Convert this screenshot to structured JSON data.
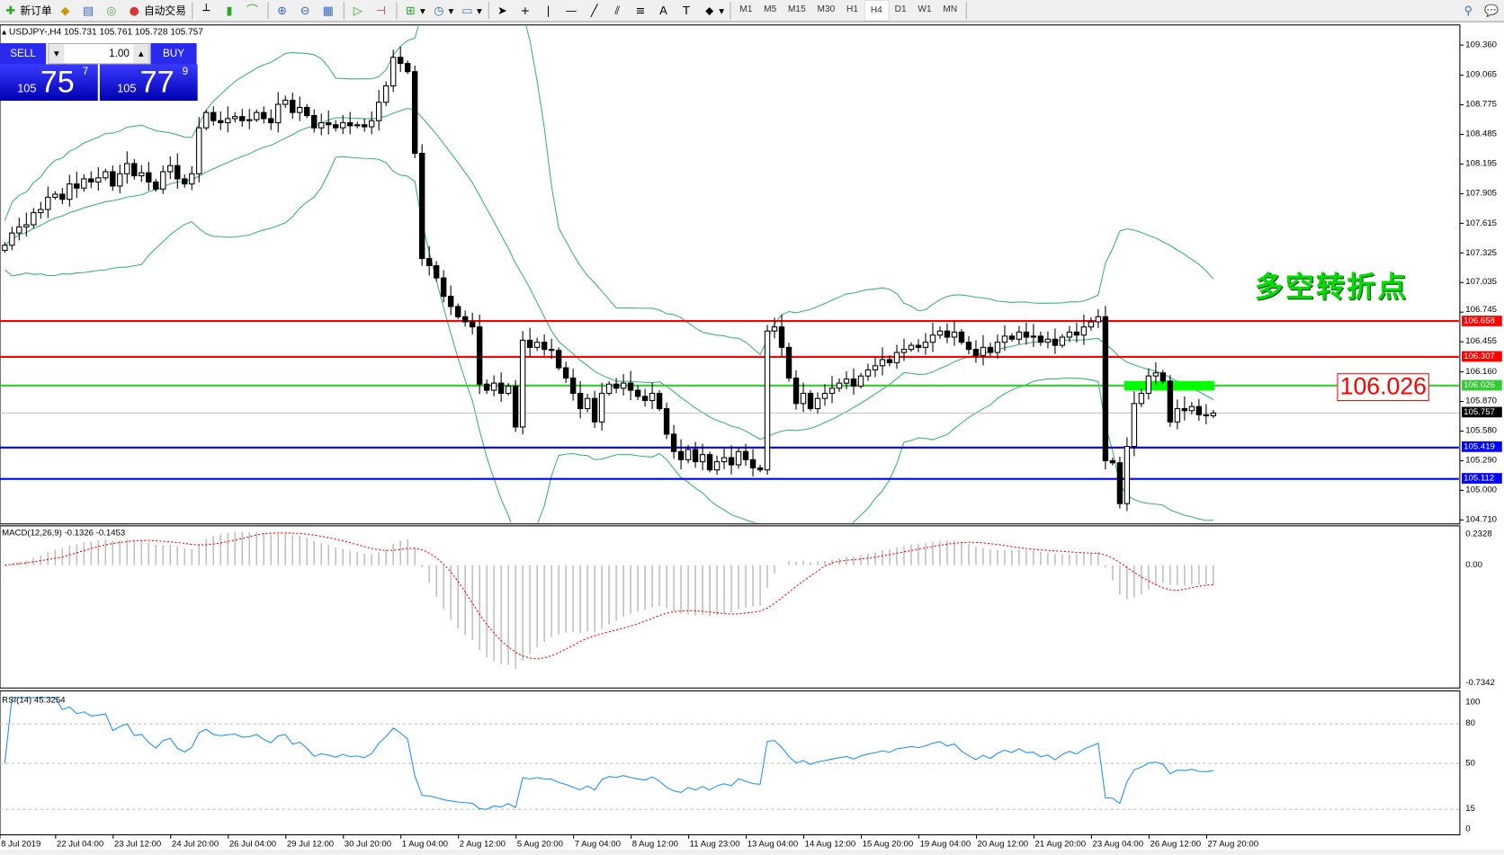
{
  "toolbar": {
    "new_order": "新订单",
    "auto_trading": "自动交易",
    "timeframes": [
      "M1",
      "M5",
      "M15",
      "M30",
      "H1",
      "H4",
      "D1",
      "W1",
      "MN"
    ],
    "active_timeframe": "H4"
  },
  "chart_header": {
    "symbol_line": "USDJPY-,H4  105.731 105.761 105.728 105.757"
  },
  "trade_panel": {
    "sell_label": "SELL",
    "buy_label": "BUY",
    "lot": "1.00",
    "sell_small": "105",
    "sell_big": "75",
    "sell_pip": "7",
    "buy_small": "105",
    "buy_big": "77",
    "buy_pip": "9"
  },
  "annotation": {
    "text": "多空转折点",
    "price_box": "106.026"
  },
  "colors": {
    "up_candle": "#ffffff",
    "down_candle": "#000000",
    "bands": "#3cb371",
    "macd_hist": "#c0c0c0",
    "macd_signal": "#ff0000",
    "rsi": "#1e90ff",
    "accent_blue": "#0000ff",
    "accent_red": "#ff0000",
    "accent_green": "#00ff00"
  },
  "chart_data": {
    "type": "candlestick",
    "symbol": "USDJPY-",
    "timeframe": "H4",
    "price_axis_ticks": [
      "109.360",
      "109.065",
      "108.775",
      "108.485",
      "108.195",
      "107.905",
      "107.615",
      "107.325",
      "107.035",
      "106.745",
      "106.455",
      "106.160",
      "105.870",
      "105.580",
      "105.290",
      "105.000",
      "104.710"
    ],
    "ylim": [
      104.71,
      109.36
    ],
    "time_axis_labels": [
      "8 Jul 2019",
      "22 Jul 04:00",
      "23 Jul 12:00",
      "24 Jul 20:00",
      "26 Jul 04:00",
      "29 Jul 12:00",
      "30 Jul 20:00",
      "1 Aug 04:00",
      "2 Aug 12:00",
      "5 Aug 20:00",
      "7 Aug 04:00",
      "8 Aug 12:00",
      "11 Aug 23:00",
      "13 Aug 04:00",
      "14 Aug 12:00",
      "15 Aug 20:00",
      "19 Aug 04:00",
      "20 Aug 12:00",
      "21 Aug 20:00",
      "23 Aug 04:00",
      "26 Aug 12:00",
      "27 Aug 20:00"
    ],
    "closes": [
      107.4,
      107.52,
      107.58,
      107.6,
      107.72,
      107.75,
      107.87,
      107.9,
      107.85,
      108.0,
      107.96,
      108.05,
      108.02,
      108.06,
      108.12,
      107.98,
      108.1,
      108.2,
      108.08,
      108.11,
      108.02,
      107.95,
      108.12,
      108.18,
      108.05,
      108.0,
      108.1,
      108.55,
      108.7,
      108.62,
      108.6,
      108.64,
      108.66,
      108.62,
      108.63,
      108.7,
      108.64,
      108.6,
      108.78,
      108.82,
      108.7,
      108.75,
      108.67,
      108.55,
      108.6,
      108.58,
      108.55,
      108.6,
      108.57,
      108.58,
      108.56,
      108.62,
      108.8,
      108.96,
      109.24,
      109.18,
      109.1,
      108.3,
      107.27,
      107.2,
      107.08,
      106.9,
      106.8,
      106.7,
      106.65,
      106.6,
      106.04,
      105.98,
      106.05,
      105.95,
      106.02,
      105.62,
      106.47,
      106.4,
      106.45,
      106.38,
      106.37,
      106.2,
      106.1,
      105.95,
      105.8,
      105.9,
      105.67,
      105.95,
      106.04,
      106.0,
      106.05,
      105.98,
      105.92,
      105.88,
      105.95,
      105.8,
      105.55,
      105.38,
      105.3,
      105.4,
      105.28,
      105.35,
      105.2,
      105.28,
      105.32,
      105.25,
      105.38,
      105.3,
      105.22,
      105.2,
      106.56,
      106.6,
      106.4,
      106.1,
      105.85,
      105.95,
      105.8,
      105.9,
      105.95,
      106.0,
      106.05,
      106.09,
      106.02,
      106.12,
      106.18,
      106.22,
      106.28,
      106.25,
      106.35,
      106.38,
      106.42,
      106.4,
      106.45,
      106.52,
      106.56,
      106.5,
      106.55,
      106.45,
      106.38,
      106.32,
      106.4,
      106.35,
      106.45,
      106.51,
      106.48,
      106.55,
      106.5,
      106.51,
      106.45,
      106.48,
      106.42,
      106.5,
      106.55,
      106.52,
      106.6,
      106.65,
      106.7,
      105.29,
      105.27,
      104.87,
      105.43,
      105.85,
      105.95,
      106.12,
      106.15,
      106.07,
      105.67,
      105.8,
      105.78,
      105.82,
      105.74,
      105.73,
      105.757
    ],
    "hlines": [
      {
        "price": 106.658,
        "label": "106.658",
        "color": "#ff0000"
      },
      {
        "price": 106.307,
        "label": "106.307",
        "color": "#ff0000"
      },
      {
        "price": 106.026,
        "label": "106.026",
        "color": "#33cc33"
      },
      {
        "price": 105.419,
        "label": "105.419",
        "color": "#0000ff"
      },
      {
        "price": 105.112,
        "label": "105.112",
        "color": "#0000ff"
      }
    ],
    "current_price": {
      "price": 105.757,
      "label": "105.757"
    },
    "bollinger": {
      "period": 20,
      "deviation": 2
    },
    "macd": {
      "label": "MACD(12,26,9) -0.1326 -0.1453",
      "ticks": [
        "0.2328",
        "0.00",
        "-0.7342"
      ],
      "ylim": [
        -0.7342,
        0.2328
      ]
    },
    "rsi": {
      "label": "RSI(14) 45.3254",
      "ticks": [
        "100",
        "80",
        "50",
        "15",
        "0"
      ],
      "levels": [
        80,
        50,
        15
      ]
    }
  }
}
